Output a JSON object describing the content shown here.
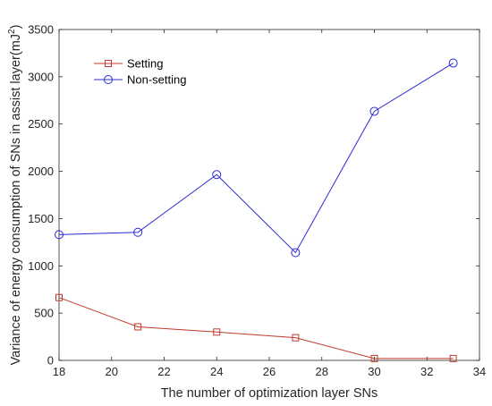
{
  "chart_data": {
    "type": "line",
    "x": [
      18,
      21,
      24,
      27,
      30,
      33
    ],
    "series": [
      {
        "name": "Setting",
        "values": [
          665,
          355,
          300,
          240,
          20,
          20
        ],
        "color": "#c0392b",
        "marker": "square"
      },
      {
        "name": "Non-setting",
        "values": [
          1330,
          1355,
          1965,
          1140,
          2635,
          3145
        ],
        "color": "#2b2bd6",
        "marker": "circle"
      }
    ],
    "xlabel": "The number of optimization layer SNs",
    "ylabel": "Variance of energy consumption of SNs in assist layer(mJ",
    "ylabel_unit_exponent": "2",
    "ylabel_close": ")",
    "xlim": [
      18,
      34
    ],
    "ylim": [
      0,
      3500
    ],
    "xticks": [
      18,
      20,
      22,
      24,
      26,
      28,
      30,
      32,
      34
    ],
    "yticks": [
      0,
      500,
      1000,
      1500,
      2000,
      2500,
      3000,
      3500
    ],
    "grid": false,
    "box": true,
    "legend_position": "top-left"
  }
}
